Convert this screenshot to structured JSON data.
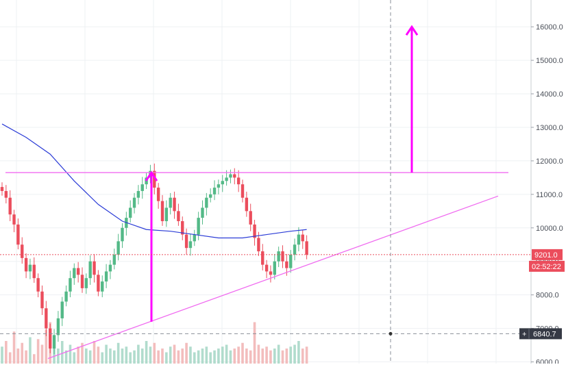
{
  "chart_data": {
    "type": "candlestick",
    "title": "",
    "xlabel": "",
    "ylabel": "",
    "ylim": [
      6000,
      16800
    ],
    "y_ticks": [
      {
        "value": 6000,
        "label": "6000.0"
      },
      {
        "value": 7000,
        "label": "7000.0"
      },
      {
        "value": 8000,
        "label": "8000.0"
      },
      {
        "value": 9000,
        "label": "9000.0"
      },
      {
        "value": 10000,
        "label": "10000.0"
      },
      {
        "value": 11000,
        "label": "11000.0"
      },
      {
        "value": 12000,
        "label": "12000.0"
      },
      {
        "value": 13000,
        "label": "13000.0"
      },
      {
        "value": 14000,
        "label": "14000.0"
      },
      {
        "value": 15000,
        "label": "15000.0"
      },
      {
        "value": 16000,
        "label": "16000.0"
      }
    ],
    "grid": true,
    "price_label": {
      "value": 9201.0,
      "text": "9201.0",
      "countdown": "02:52:22"
    },
    "crosshair_label": {
      "value": 6840.7,
      "text": "6840.7",
      "plus": "+"
    },
    "close_prices": [
      11100,
      10900,
      10400,
      10100,
      9500,
      9100,
      8700,
      8900,
      8500,
      8100,
      7600,
      7000,
      6400,
      6800,
      7300,
      7800,
      8100,
      8500,
      8800,
      8600,
      8200,
      8500,
      9000,
      8600,
      8100,
      8400,
      8700,
      8900,
      9200,
      9600,
      10000,
      10300,
      10600,
      10900,
      11100,
      11300,
      11500,
      11700,
      11200,
      10800,
      10200,
      10600,
      10900,
      10500,
      10200,
      9800,
      9400,
      9600,
      9800,
      10300,
      10600,
      10900,
      11000,
      11200,
      11300,
      11400,
      11500,
      11600,
      11500,
      11300,
      10900,
      10500,
      10100,
      9700,
      9300,
      8900,
      8700,
      8600,
      9000,
      9300,
      9000,
      8800,
      9200,
      9500,
      9800,
      9600,
      9201
    ],
    "moving_average": [
      {
        "i": 0,
        "v": 13100
      },
      {
        "i": 6,
        "v": 12700
      },
      {
        "i": 12,
        "v": 12200
      },
      {
        "i": 18,
        "v": 11400
      },
      {
        "i": 24,
        "v": 10700
      },
      {
        "i": 30,
        "v": 10200
      },
      {
        "i": 36,
        "v": 9950
      },
      {
        "i": 42,
        "v": 9900
      },
      {
        "i": 48,
        "v": 9800
      },
      {
        "i": 54,
        "v": 9700
      },
      {
        "i": 60,
        "v": 9700
      },
      {
        "i": 66,
        "v": 9800
      },
      {
        "i": 72,
        "v": 9900
      },
      {
        "i": 76,
        "v": 9950
      }
    ],
    "annotations": {
      "resistance_line": {
        "value": 11650,
        "from_index": 0,
        "to_index": 132
      },
      "support_trendline": {
        "from": {
          "i": 12,
          "v": 6100
        },
        "to": {
          "i": 130,
          "v": 10950
        }
      },
      "arrow_up_left": {
        "i": 39,
        "from": 7200,
        "to": 11650
      },
      "arrow_up_right": {
        "i": 107,
        "from": 11650,
        "to": 16000
      },
      "crosshair_index": 102
    },
    "volume": [
      45,
      60,
      30,
      85,
      40,
      55,
      35,
      70,
      25,
      65,
      50,
      90,
      110,
      75,
      40,
      60,
      35,
      50,
      30,
      45,
      55,
      40,
      35,
      60,
      45,
      30,
      50,
      40,
      35,
      55,
      40,
      45,
      30,
      35,
      50,
      40,
      60,
      45,
      55,
      35,
      40,
      30,
      45,
      50,
      35,
      40,
      55,
      45,
      30,
      35,
      40,
      45,
      30,
      35,
      40,
      45,
      50,
      35,
      40,
      45,
      55,
      40,
      35,
      110,
      50,
      40,
      45,
      35,
      40,
      50,
      35,
      40,
      45,
      50,
      60,
      40,
      45
    ]
  }
}
